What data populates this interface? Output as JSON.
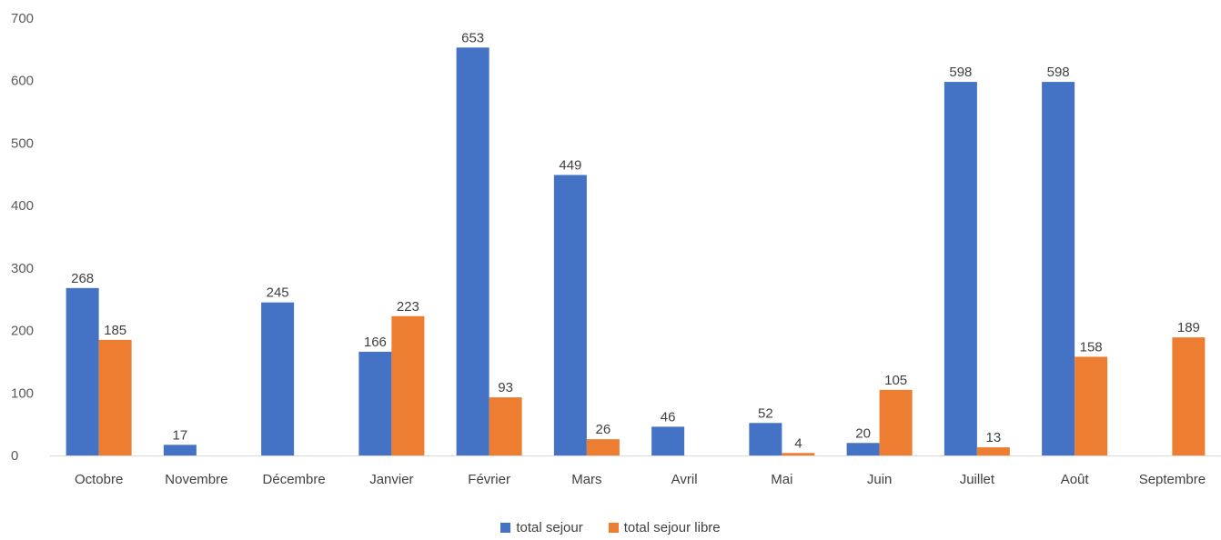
{
  "chart_data": {
    "type": "bar",
    "categories": [
      "Octobre",
      "Novembre",
      "Décembre",
      "Janvier",
      "Février",
      "Mars",
      "Avril",
      "Mai",
      "Juin",
      "Juillet",
      "Août",
      "Septembre"
    ],
    "series": [
      {
        "name": "total sejour",
        "color": "#4472C4",
        "values": [
          268,
          17,
          245,
          166,
          653,
          449,
          46,
          52,
          20,
          598,
          598,
          null
        ]
      },
      {
        "name": "total sejour libre",
        "color": "#ED7D31",
        "values": [
          185,
          null,
          null,
          223,
          93,
          26,
          null,
          4,
          105,
          13,
          158,
          189
        ]
      }
    ],
    "ylim": [
      0,
      700
    ],
    "yticks": [
      0,
      100,
      200,
      300,
      400,
      500,
      600,
      700
    ],
    "grid": false,
    "legend_position": "bottom",
    "data_labels": true
  }
}
